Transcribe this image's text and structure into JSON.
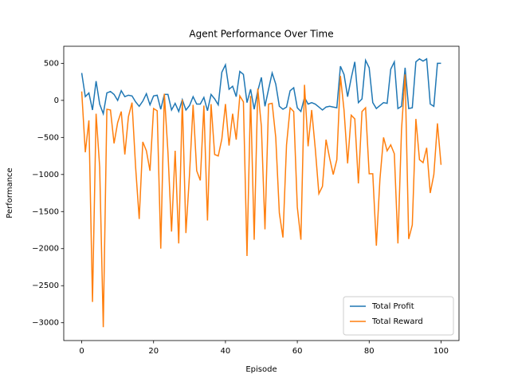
{
  "chart_data": {
    "type": "line",
    "title": "Agent Performance Over Time",
    "xlabel": "Episode",
    "ylabel": "Performance",
    "x": [
      0,
      1,
      2,
      3,
      4,
      5,
      6,
      7,
      8,
      9,
      10,
      11,
      12,
      13,
      14,
      15,
      16,
      17,
      18,
      19,
      20,
      21,
      22,
      23,
      24,
      25,
      26,
      27,
      28,
      29,
      30,
      31,
      32,
      33,
      34,
      35,
      36,
      37,
      38,
      39,
      40,
      41,
      42,
      43,
      44,
      45,
      46,
      47,
      48,
      49,
      50,
      51,
      52,
      53,
      54,
      55,
      56,
      57,
      58,
      59,
      60,
      61,
      62,
      63,
      64,
      65,
      66,
      67,
      68,
      69,
      70,
      71,
      72,
      73,
      74,
      75,
      76,
      77,
      78,
      79,
      80,
      81,
      82,
      83,
      84,
      85,
      86,
      87,
      88,
      89,
      90,
      91,
      92,
      93,
      94,
      95,
      96,
      97,
      98,
      99,
      100
    ],
    "series": [
      {
        "name": "Total Profit",
        "color": "#1f77b4",
        "values": [
          370,
          50,
          100,
          -130,
          260,
          -50,
          -180,
          100,
          120,
          80,
          0,
          130,
          50,
          70,
          60,
          -20,
          -80,
          -10,
          90,
          -60,
          60,
          70,
          -120,
          80,
          80,
          -130,
          -40,
          -150,
          10,
          -130,
          -70,
          50,
          -50,
          -50,
          40,
          -140,
          80,
          20,
          -60,
          380,
          480,
          150,
          190,
          50,
          390,
          350,
          -30,
          150,
          -120,
          130,
          310,
          -80,
          150,
          370,
          220,
          -80,
          -120,
          -90,
          130,
          170,
          -100,
          -150,
          40,
          -50,
          -30,
          -50,
          -90,
          -130,
          -90,
          -80,
          -90,
          -100,
          460,
          350,
          50,
          300,
          520,
          -30,
          20,
          540,
          440,
          -30,
          -110,
          -70,
          -30,
          -40,
          420,
          520,
          -110,
          -80,
          440,
          -110,
          -100,
          520,
          560,
          530,
          560,
          -50,
          -80,
          500,
          500
        ]
      },
      {
        "name": "Total Reward",
        "color": "#ff7f0e",
        "values": [
          120,
          -700,
          -270,
          -2720,
          -180,
          -900,
          -3060,
          -120,
          -130,
          -580,
          -300,
          -150,
          -730,
          -220,
          -30,
          -900,
          -1600,
          -560,
          -680,
          -950,
          -110,
          -140,
          -2000,
          90,
          -700,
          -1770,
          -680,
          -1930,
          10,
          -1790,
          -1000,
          -60,
          -950,
          -1080,
          -70,
          -1620,
          -50,
          -730,
          -750,
          -520,
          -50,
          -610,
          -180,
          -530,
          60,
          -20,
          -2100,
          60,
          -1880,
          160,
          -350,
          -1740,
          -50,
          -40,
          -500,
          -1520,
          -1850,
          -600,
          -100,
          -150,
          -1440,
          -1880,
          210,
          -620,
          -130,
          -650,
          -1260,
          -1160,
          -530,
          -780,
          -1000,
          -800,
          330,
          -130,
          -850,
          -200,
          -250,
          -1120,
          -150,
          -100,
          -990,
          -990,
          -1960,
          -1060,
          -500,
          -680,
          -600,
          -720,
          -1930,
          -400,
          350,
          -1870,
          -1680,
          -250,
          -800,
          -840,
          -640,
          -1250,
          -1000,
          -310,
          -870
        ]
      }
    ],
    "xlim": [
      -5,
      105
    ],
    "xticks": [
      0,
      20,
      40,
      60,
      80,
      100
    ],
    "ylim": [
      -3240,
      730
    ],
    "yticks": [
      {
        "value": -3000,
        "label": "−3000"
      },
      {
        "value": -2500,
        "label": "−2500"
      },
      {
        "value": -2000,
        "label": "−2000"
      },
      {
        "value": -1500,
        "label": "−1500"
      },
      {
        "value": -1000,
        "label": "−1000"
      },
      {
        "value": -500,
        "label": "−500"
      },
      0,
      500
    ],
    "legend": "lower right",
    "grid": false
  }
}
